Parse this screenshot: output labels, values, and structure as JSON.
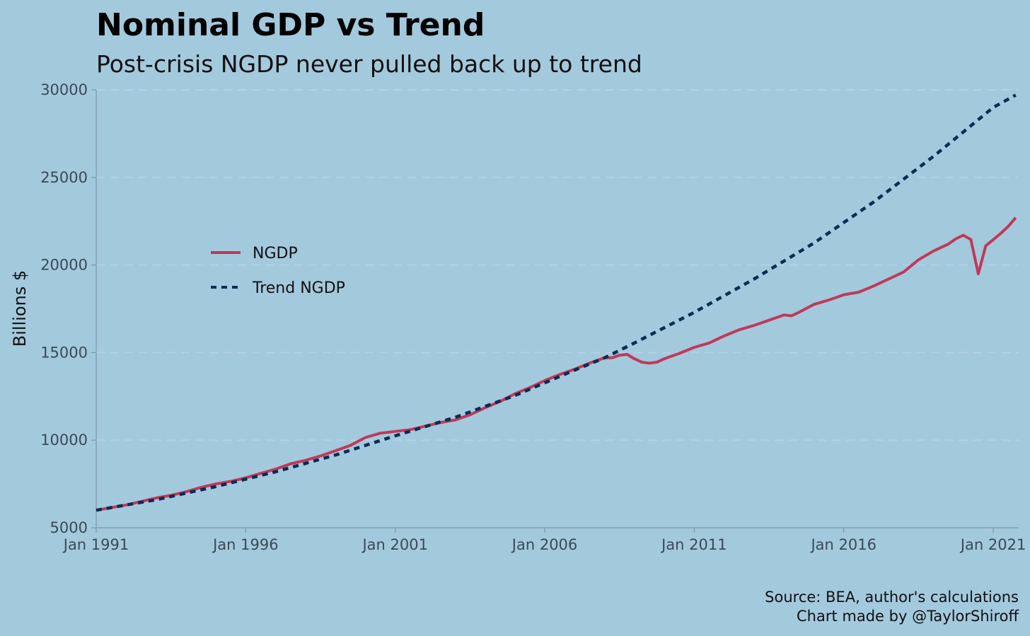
{
  "chart_data": {
    "type": "line",
    "title": "Nominal GDP vs Trend",
    "subtitle": "Post-crisis NGDP never pulled back up to trend",
    "xlabel": "",
    "ylabel": "Billions $",
    "xlim": [
      1991.0,
      2021.85
    ],
    "ylim": [
      5000,
      30000
    ],
    "x_ticks": [
      1991,
      1996,
      2001,
      2006,
      2011,
      2016,
      2021
    ],
    "x_tick_labels": [
      "Jan 1991",
      "Jan 1996",
      "Jan 2001",
      "Jan 2006",
      "Jan 2011",
      "Jan 2016",
      "Jan 2021"
    ],
    "y_ticks": [
      5000,
      10000,
      15000,
      20000,
      25000,
      30000
    ],
    "y_tick_labels": [
      "5000",
      "10000",
      "15000",
      "20000",
      "25000",
      "30000"
    ],
    "grid": "horizontal dashed",
    "legend_position": "left, inside plot",
    "series": [
      {
        "name": "NGDP",
        "style": "solid",
        "color": "#c0395a",
        "x": [
          1991.0,
          1991.5,
          1992.0,
          1992.5,
          1993.0,
          1993.5,
          1994.0,
          1994.5,
          1995.0,
          1995.5,
          1996.0,
          1996.5,
          1997.0,
          1997.5,
          1998.0,
          1998.5,
          1999.0,
          1999.5,
          2000.0,
          2000.5,
          2001.0,
          2001.5,
          2002.0,
          2002.5,
          2003.0,
          2003.5,
          2004.0,
          2004.5,
          2005.0,
          2005.5,
          2006.0,
          2006.5,
          2007.0,
          2007.5,
          2008.0,
          2008.25,
          2008.5,
          2008.75,
          2009.0,
          2009.25,
          2009.5,
          2009.75,
          2010.0,
          2010.5,
          2011.0,
          2011.5,
          2012.0,
          2012.5,
          2013.0,
          2013.5,
          2014.0,
          2014.25,
          2014.5,
          2015.0,
          2015.5,
          2016.0,
          2016.5,
          2017.0,
          2017.5,
          2018.0,
          2018.5,
          2019.0,
          2019.5,
          2019.75,
          2020.0,
          2020.25,
          2020.5,
          2020.75,
          2021.0,
          2021.25,
          2021.5,
          2021.75
        ],
        "values": [
          6000,
          6150,
          6300,
          6500,
          6700,
          6850,
          7050,
          7300,
          7500,
          7650,
          7850,
          8100,
          8350,
          8650,
          8850,
          9100,
          9400,
          9700,
          10150,
          10400,
          10500,
          10600,
          10800,
          11000,
          11150,
          11450,
          11850,
          12200,
          12650,
          13000,
          13400,
          13750,
          14050,
          14400,
          14700,
          14700,
          14850,
          14900,
          14650,
          14450,
          14400,
          14450,
          14650,
          14950,
          15300,
          15550,
          15950,
          16300,
          16550,
          16850,
          17150,
          17100,
          17300,
          17750,
          18000,
          18300,
          18450,
          18800,
          19200,
          19600,
          20300,
          20800,
          21200,
          21500,
          21700,
          21450,
          19500,
          21100,
          21450,
          21800,
          22200,
          22700
        ]
      },
      {
        "name": "Trend NGDP",
        "style": "dashed",
        "color": "#0c2b52",
        "x": [
          1991.0,
          1993.0,
          1995.0,
          1997.0,
          1999.0,
          2001.0,
          2003.0,
          2005.0,
          2007.0,
          2008.0,
          2009.0,
          2011.0,
          2013.0,
          2015.0,
          2017.0,
          2019.0,
          2021.0,
          2021.75
        ],
        "values": [
          6000,
          6600,
          7350,
          8200,
          9150,
          10250,
          11300,
          12550,
          14000,
          14700,
          15550,
          17300,
          19200,
          21250,
          23600,
          26200,
          29000,
          29700
        ]
      }
    ],
    "caption_lines": [
      "Source: BEA, author's calculations",
      "Chart made by @TaylorShiroff"
    ]
  }
}
